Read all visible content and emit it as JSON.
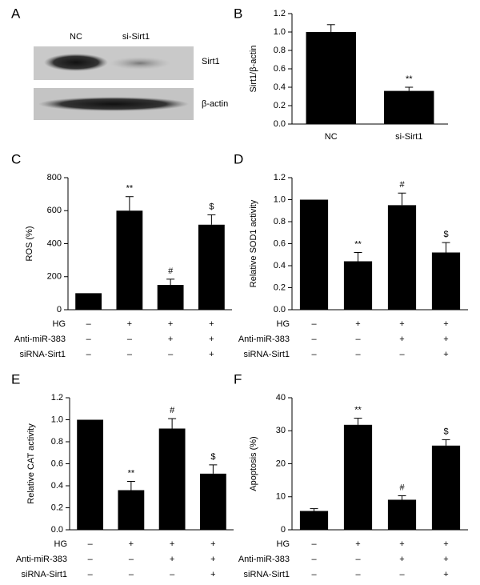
{
  "blot": {
    "panel_label": "A",
    "lanes": [
      "NC",
      "si-Sirt1"
    ],
    "bands": [
      "Sirt1",
      "β-actin"
    ]
  },
  "chart_data": [
    {
      "type": "bar",
      "panel_label": "B",
      "y_label": "Sirt1/β-actin",
      "categories": [
        "NC",
        "si-Sirt1"
      ],
      "values": [
        1.0,
        0.36
      ],
      "errors": [
        0.08,
        0.04
      ],
      "annotations": [
        null,
        "**"
      ],
      "color": "#000000",
      "ylim": [
        0,
        1.2
      ],
      "yticks": [
        {
          "value": 0,
          "label": "0.0"
        },
        0.2,
        0.4,
        0.6,
        0.8,
        {
          "value": 1,
          "label": "1.0"
        },
        1.2
      ]
    },
    {
      "type": "bar",
      "panel_label": "C",
      "y_label": "ROS (%)",
      "categories": [
        null,
        null,
        null,
        null
      ],
      "values": [
        100,
        600,
        150,
        515
      ],
      "errors": [
        0,
        85,
        35,
        60
      ],
      "annotations": [
        null,
        "**",
        "#",
        "$"
      ],
      "color": "#000000",
      "ylim": [
        0,
        800
      ],
      "yticks": [
        0,
        200,
        400,
        600,
        800
      ],
      "treatments": [
        {
          "name": "HG",
          "signs": [
            "–",
            "+",
            "+",
            "+"
          ]
        },
        {
          "name": "Anti-miR-383",
          "signs": [
            "–",
            "–",
            "+",
            "+"
          ]
        },
        {
          "name": "siRNA-Sirt1",
          "signs": [
            "–",
            "–",
            "–",
            "+"
          ]
        }
      ]
    },
    {
      "type": "bar",
      "panel_label": "D",
      "y_label": "Relative SOD1 activity",
      "categories": [
        null,
        null,
        null,
        null
      ],
      "values": [
        1.0,
        0.44,
        0.95,
        0.52
      ],
      "errors": [
        0,
        0.08,
        0.11,
        0.09
      ],
      "annotations": [
        null,
        "**",
        "#",
        "$"
      ],
      "color": "#000000",
      "ylim": [
        0,
        1.2
      ],
      "yticks": [
        {
          "value": 0,
          "label": "0.0"
        },
        0.2,
        0.4,
        0.6,
        0.8,
        {
          "value": 1,
          "label": "1.0"
        },
        1.2
      ],
      "treatments": [
        {
          "name": "HG",
          "signs": [
            "–",
            "+",
            "+",
            "+"
          ]
        },
        {
          "name": "Anti-miR-383",
          "signs": [
            "–",
            "–",
            "+",
            "+"
          ]
        },
        {
          "name": "siRNA-Sirt1",
          "signs": [
            "–",
            "–",
            "–",
            "+"
          ]
        }
      ]
    },
    {
      "type": "bar",
      "panel_label": "E",
      "y_label": "Relative CAT activity",
      "categories": [
        null,
        null,
        null,
        null
      ],
      "values": [
        1.0,
        0.36,
        0.92,
        0.51
      ],
      "errors": [
        0,
        0.08,
        0.09,
        0.08
      ],
      "annotations": [
        null,
        "**",
        "#",
        "$"
      ],
      "color": "#000000",
      "ylim": [
        0,
        1.2
      ],
      "yticks": [
        {
          "value": 0,
          "label": "0.0"
        },
        0.2,
        0.4,
        0.6,
        0.8,
        {
          "value": 1,
          "label": "1.0"
        },
        1.2
      ],
      "treatments": [
        {
          "name": "HG",
          "signs": [
            "–",
            "+",
            "+",
            "+"
          ]
        },
        {
          "name": "Anti-miR-383",
          "signs": [
            "–",
            "–",
            "+",
            "+"
          ]
        },
        {
          "name": "siRNA-Sirt1",
          "signs": [
            "–",
            "–",
            "–",
            "+"
          ]
        }
      ]
    },
    {
      "type": "bar",
      "panel_label": "F",
      "y_label": "Apoptosis (%)",
      "categories": [
        null,
        null,
        null,
        null
      ],
      "values": [
        5.7,
        31.8,
        9.1,
        25.5
      ],
      "errors": [
        0.7,
        2,
        1.2,
        1.8
      ],
      "annotations": [
        null,
        "**",
        "#",
        "$"
      ],
      "color": "#000000",
      "ylim": [
        0,
        40
      ],
      "yticks": [
        0,
        10,
        20,
        30,
        40
      ],
      "treatments": [
        {
          "name": "HG",
          "signs": [
            "–",
            "+",
            "+",
            "+"
          ]
        },
        {
          "name": "Anti-miR-383",
          "signs": [
            "–",
            "–",
            "+",
            "+"
          ]
        },
        {
          "name": "siRNA-Sirt1",
          "signs": [
            "–",
            "–",
            "–",
            "+"
          ]
        }
      ]
    }
  ]
}
